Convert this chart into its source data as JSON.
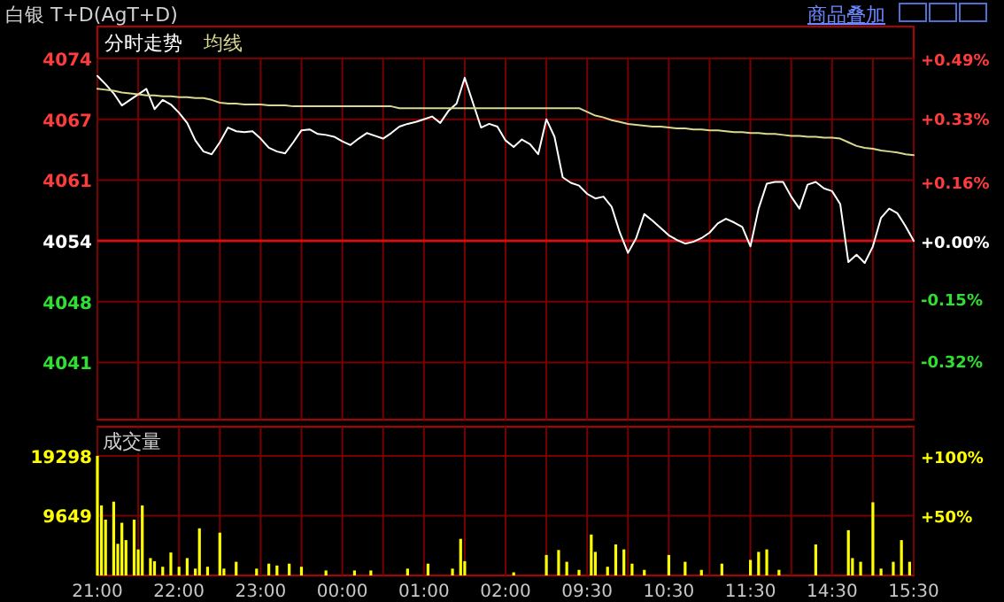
{
  "chart_data": [
    {
      "type": "line",
      "title": "白银  T+D(AgT+D)",
      "annotations": [
        "商品叠加"
      ],
      "categories": [
        null,
        null,
        null,
        null,
        null,
        null,
        null,
        null,
        null,
        null,
        null,
        null,
        null,
        null,
        null,
        null,
        null,
        null,
        null,
        null,
        null,
        null,
        null,
        null,
        null,
        null,
        null,
        null,
        null,
        null,
        null,
        null,
        null,
        null,
        null,
        null,
        null,
        null,
        null,
        null,
        null,
        null,
        null,
        null,
        null,
        null,
        null,
        null,
        null,
        null,
        null,
        null,
        null,
        null,
        null,
        null,
        null,
        null,
        null,
        null,
        null,
        null,
        null,
        null,
        null,
        null,
        null,
        null,
        null,
        null,
        null,
        null,
        null,
        null,
        null,
        null,
        null,
        null,
        null,
        null,
        null,
        null,
        null,
        null,
        null,
        null,
        null,
        null,
        null,
        null,
        null,
        null,
        null,
        null,
        null,
        null,
        null,
        null,
        null,
        null,
        null
      ],
      "series": [
        {
          "name": "分时走势",
          "color": "#ffffff",
          "values": [
            4072.2,
            4071.3,
            4070.3,
            4069.0,
            4069.6,
            4070.2,
            4070.8,
            4068.6,
            4069.6,
            4069.1,
            4068.2,
            4067.1,
            4065.2,
            4064.0,
            4063.7,
            4065.0,
            4066.6,
            4066.2,
            4066.1,
            4066.2,
            4065.4,
            4064.4,
            4064.0,
            4063.8,
            4065.0,
            4066.3,
            4066.4,
            4065.9,
            4065.8,
            4065.6,
            4065.1,
            4064.7,
            4065.4,
            4066.0,
            4065.7,
            4065.4,
            4066.0,
            4066.7,
            4067.0,
            4067.2,
            4067.5,
            4067.8,
            4067.1,
            4068.4,
            4069.2,
            4072.0,
            4069.3,
            4066.6,
            4067.0,
            4066.7,
            4065.2,
            4064.5,
            4065.3,
            4064.8,
            4063.7,
            4067.5,
            4065.6,
            4061.2,
            4060.6,
            4060.3,
            4059.4,
            4058.9,
            4059.1,
            4058.0,
            4055.2,
            4053.0,
            4054.6,
            4057.2,
            4056.5,
            4055.7,
            4054.9,
            4054.4,
            4054.0,
            4054.2,
            4054.6,
            4055.2,
            4056.2,
            4056.7,
            4056.3,
            4055.8,
            4053.7,
            4057.8,
            4060.5,
            4060.7,
            4060.7,
            4059.1,
            4057.8,
            4060.4,
            4060.7,
            4060.0,
            4059.7,
            4058.3,
            4052.0,
            4052.8,
            4051.9,
            4053.7,
            4056.8,
            4057.8,
            4057.3,
            4055.9,
            4054.3
          ]
        },
        {
          "name": "均线",
          "color": "#d8d890",
          "values": [
            4070.8,
            4070.7,
            4070.6,
            4070.4,
            4070.3,
            4070.2,
            4070.1,
            4070.1,
            4070.0,
            4070.0,
            4069.9,
            4069.9,
            4069.8,
            4069.8,
            4069.6,
            4069.3,
            4069.2,
            4069.2,
            4069.1,
            4069.1,
            4069.1,
            4069.0,
            4069.0,
            4069.0,
            4068.9,
            4068.9,
            4068.9,
            4068.9,
            4068.9,
            4068.9,
            4068.9,
            4068.9,
            4068.9,
            4068.9,
            4068.9,
            4068.9,
            4068.9,
            4068.7,
            4068.7,
            4068.7,
            4068.7,
            4068.7,
            4068.7,
            4068.7,
            4068.7,
            4068.7,
            4068.7,
            4068.7,
            4068.7,
            4068.7,
            4068.7,
            4068.7,
            4068.7,
            4068.7,
            4068.7,
            4068.7,
            4068.7,
            4068.7,
            4068.7,
            4068.7,
            4068.3,
            4067.9,
            4067.7,
            4067.4,
            4067.2,
            4067.0,
            4066.9,
            4066.8,
            4066.7,
            4066.7,
            4066.6,
            4066.5,
            4066.5,
            4066.4,
            4066.4,
            4066.3,
            4066.3,
            4066.2,
            4066.1,
            4066.1,
            4066.0,
            4066.0,
            4065.9,
            4065.9,
            4065.8,
            4065.7,
            4065.7,
            4065.6,
            4065.6,
            4065.5,
            4065.5,
            4065.4,
            4065.0,
            4064.6,
            4064.4,
            4064.3,
            4064.1,
            4064.0,
            4063.9,
            4063.7,
            4063.6
          ]
        }
      ],
      "ylim": [
        4034.9,
        4074.1
      ],
      "yticks": [
        {
          "value": 4074.1,
          "label": "4074"
        },
        {
          "value": 4067.5,
          "label": "4067"
        },
        {
          "value": 4060.9,
          "label": "4061"
        },
        {
          "value": 4054.3,
          "label": "4054"
        },
        {
          "value": 4047.7,
          "label": "4048"
        },
        {
          "value": 4041.1,
          "label": "4041"
        }
      ],
      "y2lim": [
        -0.48,
        0.49
      ],
      "y2ticks": [
        {
          "value": 0.49,
          "label": "+0.49%"
        },
        {
          "value": 0.33,
          "label": "+0.33%"
        },
        {
          "value": 0.16,
          "label": "+0.16%"
        },
        {
          "value": 0,
          "label": "+0.00%"
        },
        {
          "value": -0.154,
          "label": "-0.15%"
        },
        {
          "value": -0.32,
          "label": "-0.32%"
        }
      ],
      "ref_lines": [
        {
          "axis": "y",
          "value": 4054.3,
          "color": "#d01010"
        }
      ],
      "grid": true,
      "legend": "top left",
      "tick_labels": "y"
    },
    {
      "type": "bar",
      "title": "成交量",
      "categories": [
        "21:00",
        null,
        null,
        null,
        null,
        null,
        null,
        null,
        null,
        null,
        null,
        null,
        null,
        null,
        null,
        null,
        null,
        null,
        null,
        null,
        "22:00",
        null,
        null,
        null,
        null,
        null,
        null,
        null,
        null,
        null,
        null,
        null,
        null,
        null,
        null,
        null,
        null,
        null,
        null,
        null,
        "23:00",
        null,
        null,
        null,
        null,
        null,
        null,
        null,
        null,
        null,
        null,
        null,
        null,
        null,
        null,
        null,
        null,
        null,
        null,
        null,
        "00:00",
        null,
        null,
        null,
        null,
        null,
        null,
        null,
        null,
        null,
        null,
        null,
        null,
        null,
        null,
        null,
        null,
        null,
        null,
        null,
        "01:00",
        null,
        null,
        null,
        null,
        null,
        null,
        null,
        null,
        null,
        null,
        null,
        null,
        null,
        null,
        null,
        null,
        null,
        null,
        null,
        "02:00",
        null,
        null,
        null,
        null,
        null,
        null,
        null,
        null,
        null,
        null,
        null,
        null,
        null,
        null,
        null,
        null,
        null,
        null,
        null,
        "09:30",
        null,
        null,
        null,
        null,
        null,
        null,
        null,
        null,
        null,
        null,
        null,
        null,
        null,
        null,
        null,
        null,
        null,
        null,
        null,
        "10:30",
        null,
        null,
        null,
        null,
        null,
        null,
        null,
        null,
        null,
        null,
        null,
        null,
        null,
        null,
        null,
        null,
        null,
        null,
        null,
        "11:30",
        null,
        null,
        null,
        null,
        null,
        null,
        null,
        null,
        null,
        null,
        null,
        null,
        null,
        null,
        null,
        null,
        null,
        null,
        null,
        "14:30",
        null,
        null,
        null,
        null,
        null,
        null,
        null,
        null,
        null,
        null,
        null,
        null,
        null,
        null,
        null,
        null,
        null,
        null,
        null,
        "15:30"
      ],
      "values": [
        19298,
        11300,
        9000,
        null,
        11900,
        5100,
        8500,
        5700,
        null,
        9000,
        4200,
        11300,
        null,
        2800,
        2300,
        null,
        1400,
        null,
        3700,
        null,
        1400,
        null,
        2800,
        null,
        1100,
        7600,
        null,
        1400,
        null,
        null,
        6900,
        1100,
        null,
        null,
        2200,
        null,
        null,
        null,
        null,
        1100,
        null,
        null,
        1900,
        null,
        1600,
        null,
        null,
        1900,
        null,
        null,
        1400,
        null,
        null,
        null,
        null,
        null,
        800,
        null,
        null,
        null,
        null,
        null,
        null,
        800,
        null,
        null,
        null,
        800,
        null,
        null,
        null,
        null,
        null,
        null,
        null,
        null,
        1100,
        null,
        null,
        null,
        null,
        1900,
        null,
        null,
        null,
        null,
        null,
        1100,
        null,
        5900,
        2300,
        null,
        null,
        null,
        null,
        null,
        null,
        null,
        null,
        null,
        null,
        null,
        500,
        null,
        null,
        null,
        null,
        null,
        null,
        null,
        3300,
        null,
        null,
        4100,
        null,
        2200,
        null,
        null,
        900,
        null,
        null,
        6600,
        3800,
        null,
        null,
        1400,
        null,
        5000,
        null,
        4200,
        null,
        1900,
        null,
        null,
        900,
        null,
        null,
        null,
        null,
        null,
        3300,
        null,
        null,
        null,
        2200,
        null,
        null,
        null,
        900,
        null,
        null,
        null,
        null,
        1900,
        null,
        null,
        null,
        null,
        null,
        null,
        2500,
        null,
        3800,
        null,
        4200,
        null,
        null,
        900,
        null,
        null,
        null,
        null,
        null,
        null,
        null,
        null,
        5000,
        null,
        null,
        null,
        null,
        null,
        null,
        null,
        7300,
        2800,
        null,
        2200,
        null,
        null,
        11800,
        null,
        1100,
        null,
        null,
        2200,
        null,
        5700,
        null,
        2200,
        null
      ],
      "color": "#ffff00",
      "ylim": [
        0,
        24000
      ],
      "yticks": [
        9649,
        19298
      ],
      "y2lim": [
        0,
        124.4
      ],
      "y2ticks": [
        {
          "value": 50,
          "label": "+50%"
        },
        {
          "value": 100,
          "label": "+100%"
        }
      ],
      "grid": true
    }
  ]
}
